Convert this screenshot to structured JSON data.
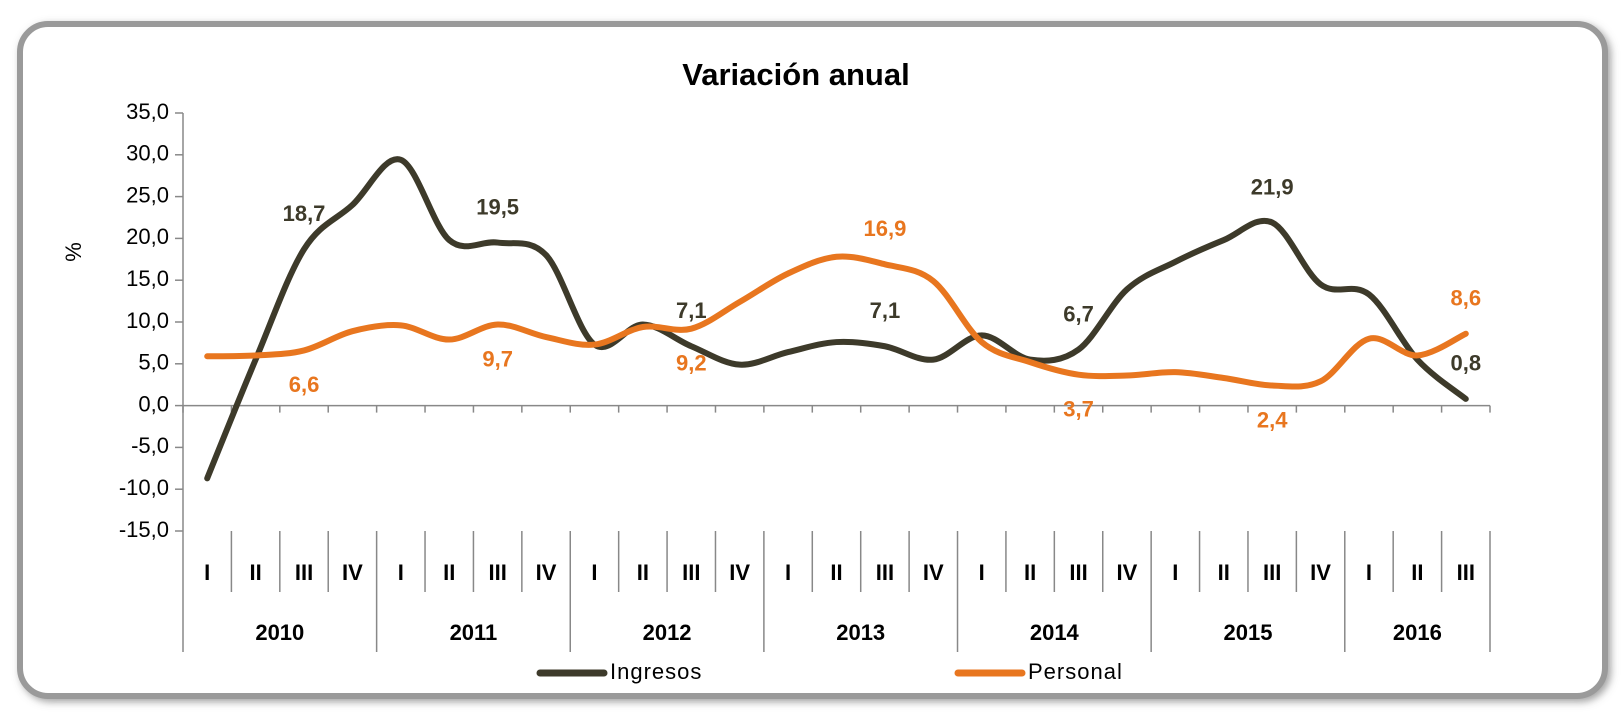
{
  "chart_data": {
    "type": "line",
    "title": "Variación anual",
    "y_label": "%",
    "categories": [
      "I",
      "II",
      "III",
      "IV",
      "I",
      "II",
      "III",
      "IV",
      "I",
      "II",
      "III",
      "IV",
      "I",
      "II",
      "III",
      "IV",
      "I",
      "II",
      "III",
      "IV",
      "I",
      "II",
      "III",
      "IV",
      "I",
      "II",
      "III"
    ],
    "groups": [
      {
        "label": "2010",
        "size": 4
      },
      {
        "label": "2011",
        "size": 4
      },
      {
        "label": "2012",
        "size": 4
      },
      {
        "label": "2013",
        "size": 4
      },
      {
        "label": "2014",
        "size": 4
      },
      {
        "label": "2015",
        "size": 4
      },
      {
        "label": "2016",
        "size": 3
      }
    ],
    "series": [
      {
        "name": "Ingresos",
        "color": "#3d3a2a",
        "values": [
          -8.7,
          5.5,
          18.7,
          24.0,
          29.4,
          19.8,
          19.5,
          18.0,
          7.3,
          9.7,
          7.1,
          4.9,
          6.4,
          7.6,
          7.1,
          5.5,
          8.4,
          5.5,
          6.7,
          13.9,
          17.2,
          19.8,
          21.9,
          14.5,
          13.3,
          5.5,
          0.8
        ],
        "value_labels": [
          null,
          null,
          "18,7",
          null,
          null,
          null,
          "19,5",
          null,
          null,
          null,
          "7,1",
          null,
          null,
          null,
          "7,1",
          null,
          null,
          null,
          "6,7",
          null,
          null,
          null,
          "21,9",
          null,
          null,
          null,
          "0,8"
        ]
      },
      {
        "name": "Personal",
        "color": "#e8761f",
        "values": [
          5.9,
          6.0,
          6.6,
          8.9,
          9.6,
          7.9,
          9.7,
          8.2,
          7.3,
          9.4,
          9.2,
          12.4,
          15.8,
          17.8,
          16.9,
          14.9,
          7.6,
          5.2,
          3.7,
          3.6,
          4.0,
          3.3,
          2.4,
          2.9,
          8.0,
          6.0,
          8.6
        ],
        "value_labels": [
          null,
          null,
          "6,6",
          null,
          null,
          null,
          "9,7",
          null,
          null,
          null,
          "9,2",
          null,
          null,
          null,
          "16,9",
          null,
          null,
          null,
          "3,7",
          null,
          null,
          null,
          "2,4",
          null,
          null,
          null,
          "8,6"
        ]
      }
    ],
    "ylim": [
      -15,
      35
    ],
    "yticks": [
      {
        "value": -15,
        "label": "-15,0"
      },
      {
        "value": -10,
        "label": "-10,0"
      },
      {
        "value": -5,
        "label": "-5,0"
      },
      {
        "value": 0,
        "label": "0,0"
      },
      {
        "value": 5,
        "label": "5,0"
      },
      {
        "value": 10,
        "label": "10,0"
      },
      {
        "value": 15,
        "label": "15,0"
      },
      {
        "value": 20,
        "label": "20,0"
      },
      {
        "value": 25,
        "label": "25,0"
      },
      {
        "value": 30,
        "label": "30,0"
      },
      {
        "value": 35,
        "label": "35,0"
      }
    ],
    "legend": "bottom"
  }
}
